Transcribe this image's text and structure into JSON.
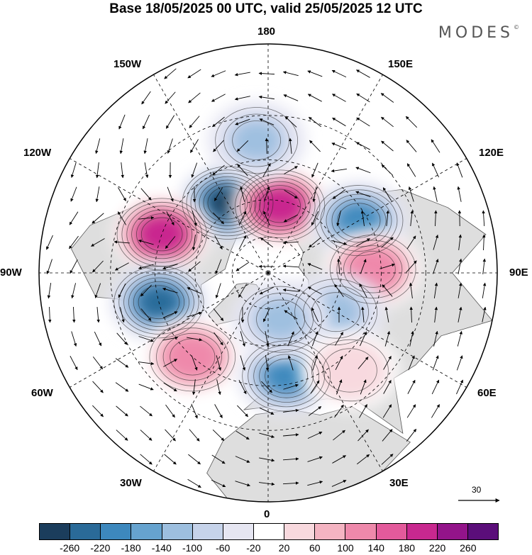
{
  "title": "Base 18/05/2025 00 UTC, valid 25/05/2025 12 UTC",
  "brand": "MODES",
  "brand_mark": "©",
  "longitude_labels": [
    "180",
    "150E",
    "120E",
    "90E",
    "60E",
    "30E",
    "0",
    "30W",
    "60W",
    "90W",
    "120W",
    "150W"
  ],
  "vector_scale": {
    "value": "30"
  },
  "colorbar": {
    "colors": [
      "#1b3d5c",
      "#2a6a98",
      "#3d88bd",
      "#66a3cf",
      "#9dbfdf",
      "#c6d3ea",
      "#e6e6f2",
      "#ffffff",
      "#f8d9de",
      "#f4b4c2",
      "#ee89ab",
      "#e35a9b",
      "#c8288f",
      "#93148a",
      "#5b0e7a"
    ],
    "tick_labels": [
      "-260",
      "-220",
      "-180",
      "-140",
      "-100",
      "-60",
      "-20",
      "20",
      "60",
      "100",
      "140",
      "180",
      "220",
      "260"
    ]
  },
  "anomalies": [
    {
      "type": "neg",
      "lon": -150,
      "lat": 57,
      "value": -260
    },
    {
      "type": "pos",
      "lon": 170,
      "lat": 62,
      "value": 220
    },
    {
      "type": "neg",
      "lon": 120,
      "lat": 48,
      "value": -200
    },
    {
      "type": "pos",
      "lon": 92,
      "lat": 48,
      "value": 140
    },
    {
      "type": "pos",
      "lon": -110,
      "lat": 45,
      "value": 220
    },
    {
      "type": "neg",
      "lon": -75,
      "lat": 45,
      "value": -240
    },
    {
      "type": "pos",
      "lon": -42,
      "lat": 45,
      "value": 140
    },
    {
      "type": "neg",
      "lon": 10,
      "lat": 48,
      "value": -180
    },
    {
      "type": "neg",
      "lon": 60,
      "lat": 58,
      "value": -100
    },
    {
      "type": "neg",
      "lon": 15,
      "lat": 70,
      "value": -100
    },
    {
      "type": "pos",
      "lon": 40,
      "lat": 40,
      "value": 60
    },
    {
      "type": "neg",
      "lon": -175,
      "lat": 38,
      "value": -100
    }
  ],
  "colors": {
    "land": "#dedede",
    "ocean": "#ffffff",
    "coast": "#555555",
    "grid": "#000000"
  }
}
